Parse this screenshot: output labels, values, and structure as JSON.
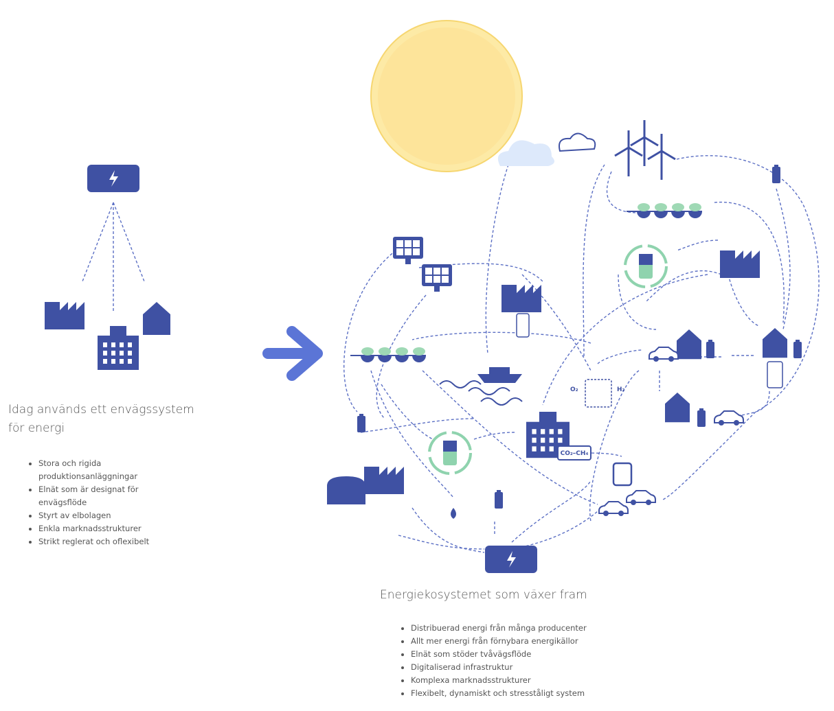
{
  "left": {
    "title": "Idag används ett envägssystem för energi",
    "items": [
      "Stora och rigida produktionsanläggningar",
      "Elnät som är designat för envägsflöde",
      "Styrt av elbolagen",
      "Enkla marknadsstrukturer",
      "Strikt reglerat och oflexibelt"
    ]
  },
  "right": {
    "title": "Energiekosystemet som växer fram",
    "items": [
      "Distribuerad energi från många producenter",
      "Allt mer energi från förnybara energikällor",
      "Elnät som stöder tvåvägsflöde",
      "Digitaliserad infrastruktur",
      "Komplexa marknadsstrukturer",
      "Flexibelt, dynamiskt och stresståligt system"
    ]
  },
  "labels": {
    "co2": "CO₂–CH₄",
    "o2": "O₂",
    "h2": "H₂"
  }
}
